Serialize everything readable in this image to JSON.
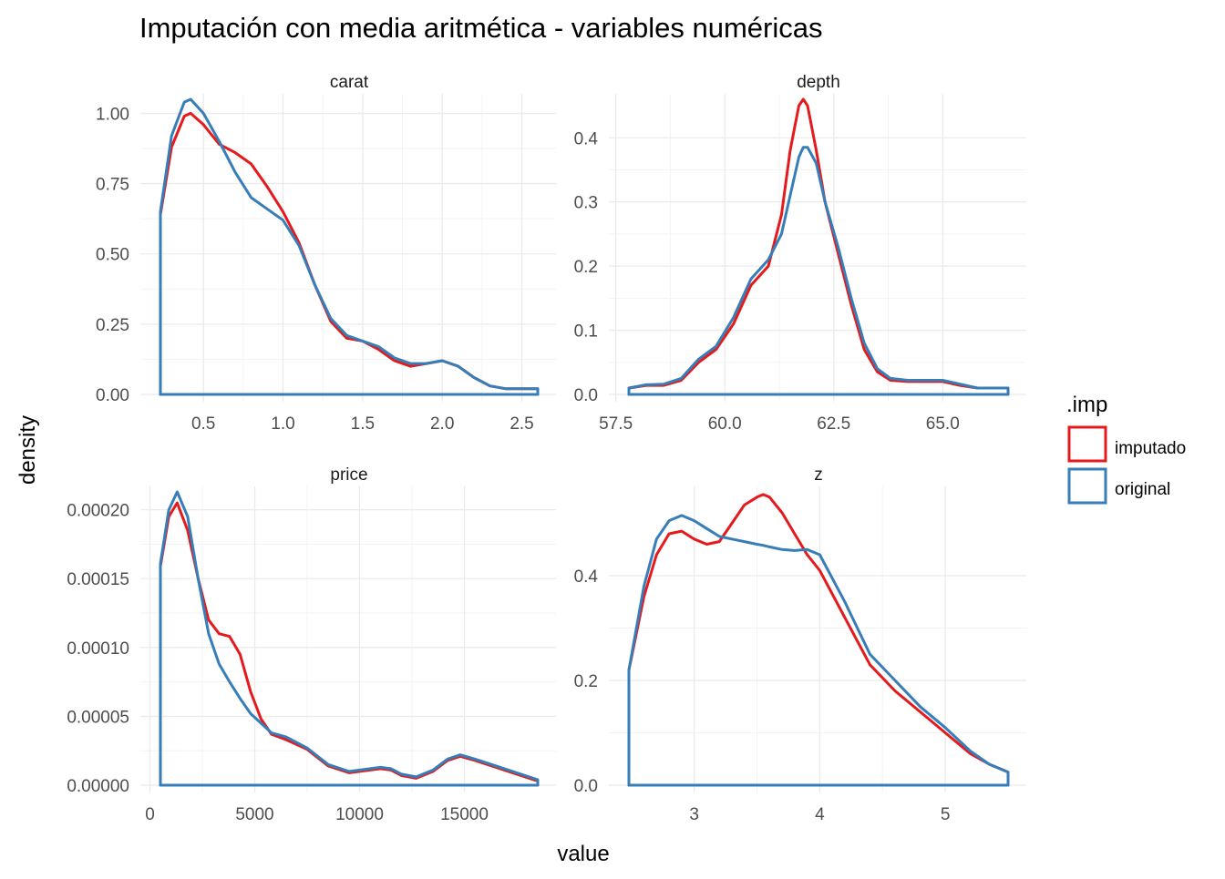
{
  "chart_data": {
    "type": "line",
    "title": "Imputación con media aritmética - variables numéricas",
    "xlabel": "value",
    "ylabel": "density",
    "legend": {
      "title": ".imp",
      "position": "right",
      "entries": [
        {
          "name": "imputado",
          "color": "#E41A1C"
        },
        {
          "name": "original",
          "color": "#377EB8"
        }
      ]
    },
    "grid": true,
    "panels": [
      {
        "name": "carat",
        "xlim": [
          0.23,
          2.6
        ],
        "ylim": [
          0,
          1.05
        ],
        "xticks": [
          {
            "v": 0.5,
            "l": "0.5"
          },
          {
            "v": 1.0,
            "l": "1.0"
          },
          {
            "v": 1.5,
            "l": "1.5"
          },
          {
            "v": 2.0,
            "l": "2.0"
          },
          {
            "v": 2.5,
            "l": "2.5"
          }
        ],
        "yticks": [
          {
            "v": 0,
            "l": "0.00"
          },
          {
            "v": 0.25,
            "l": "0.25"
          },
          {
            "v": 0.5,
            "l": "0.50"
          },
          {
            "v": 0.75,
            "l": "0.75"
          },
          {
            "v": 1.0,
            "l": "1.00"
          }
        ],
        "series": [
          {
            "name": "imputado",
            "x": [
              0.23,
              0.3,
              0.38,
              0.42,
              0.5,
              0.6,
              0.7,
              0.8,
              0.9,
              1.0,
              1.1,
              1.2,
              1.3,
              1.4,
              1.5,
              1.6,
              1.7,
              1.8,
              1.9,
              2.0,
              2.1,
              2.2,
              2.3,
              2.4,
              2.5,
              2.6
            ],
            "y": [
              0.64,
              0.88,
              0.99,
              1.0,
              0.96,
              0.89,
              0.86,
              0.82,
              0.74,
              0.65,
              0.54,
              0.39,
              0.26,
              0.2,
              0.19,
              0.16,
              0.12,
              0.1,
              0.11,
              0.12,
              0.1,
              0.06,
              0.03,
              0.02,
              0.02,
              0.02
            ]
          },
          {
            "name": "original",
            "x": [
              0.23,
              0.3,
              0.38,
              0.42,
              0.5,
              0.6,
              0.7,
              0.8,
              0.9,
              1.0,
              1.1,
              1.2,
              1.3,
              1.4,
              1.5,
              1.6,
              1.7,
              1.8,
              1.9,
              2.0,
              2.1,
              2.2,
              2.3,
              2.4,
              2.5,
              2.6
            ],
            "y": [
              0.65,
              0.92,
              1.04,
              1.05,
              1.0,
              0.9,
              0.79,
              0.7,
              0.66,
              0.62,
              0.53,
              0.39,
              0.27,
              0.21,
              0.19,
              0.17,
              0.13,
              0.11,
              0.11,
              0.12,
              0.1,
              0.06,
              0.03,
              0.02,
              0.02,
              0.02
            ]
          }
        ]
      },
      {
        "name": "depth",
        "xlim": [
          57.8,
          66.5
        ],
        "ylim": [
          0,
          0.46
        ],
        "xticks": [
          {
            "v": 57.5,
            "l": "57.5"
          },
          {
            "v": 60.0,
            "l": "60.0"
          },
          {
            "v": 62.5,
            "l": "62.5"
          },
          {
            "v": 65.0,
            "l": "65.0"
          }
        ],
        "yticks": [
          {
            "v": 0,
            "l": "0.0"
          },
          {
            "v": 0.1,
            "l": "0.1"
          },
          {
            "v": 0.2,
            "l": "0.2"
          },
          {
            "v": 0.3,
            "l": "0.3"
          },
          {
            "v": 0.4,
            "l": "0.4"
          }
        ],
        "series": [
          {
            "name": "imputado",
            "x": [
              57.8,
              58.2,
              58.6,
              59.0,
              59.4,
              59.8,
              60.2,
              60.6,
              61.0,
              61.3,
              61.5,
              61.7,
              61.8,
              61.9,
              62.1,
              62.3,
              62.6,
              62.9,
              63.2,
              63.5,
              63.8,
              64.2,
              64.6,
              65.0,
              65.4,
              65.8,
              66.2,
              66.5
            ],
            "y": [
              0.01,
              0.014,
              0.014,
              0.022,
              0.05,
              0.07,
              0.11,
              0.17,
              0.2,
              0.28,
              0.38,
              0.45,
              0.46,
              0.45,
              0.38,
              0.3,
              0.22,
              0.14,
              0.07,
              0.035,
              0.022,
              0.02,
              0.02,
              0.02,
              0.014,
              0.01,
              0.01,
              0.01
            ]
          },
          {
            "name": "original",
            "x": [
              57.8,
              58.2,
              58.6,
              59.0,
              59.4,
              59.8,
              60.2,
              60.6,
              61.0,
              61.3,
              61.5,
              61.7,
              61.8,
              61.9,
              62.1,
              62.3,
              62.6,
              62.9,
              63.2,
              63.5,
              63.8,
              64.2,
              64.6,
              65.0,
              65.4,
              65.8,
              66.2,
              66.5
            ],
            "y": [
              0.01,
              0.015,
              0.016,
              0.025,
              0.055,
              0.075,
              0.12,
              0.18,
              0.21,
              0.25,
              0.31,
              0.37,
              0.385,
              0.385,
              0.36,
              0.3,
              0.23,
              0.15,
              0.08,
              0.04,
              0.025,
              0.022,
              0.022,
              0.022,
              0.016,
              0.01,
              0.01,
              0.01
            ]
          }
        ]
      },
      {
        "name": "price",
        "xlim": [
          500,
          18500
        ],
        "ylim": [
          0,
          0.000213
        ],
        "xticks": [
          {
            "v": 0,
            "l": "0"
          },
          {
            "v": 5000,
            "l": "5000"
          },
          {
            "v": 10000,
            "l": "10000"
          },
          {
            "v": 15000,
            "l": "15000"
          }
        ],
        "yticks": [
          {
            "v": 0,
            "l": "0.00000"
          },
          {
            "v": 5e-05,
            "l": "0.00005"
          },
          {
            "v": 0.0001,
            "l": "0.00010"
          },
          {
            "v": 0.00015,
            "l": "0.00015"
          },
          {
            "v": 0.0002,
            "l": "0.00020"
          }
        ],
        "series": [
          {
            "name": "imputado",
            "x": [
              500,
              900,
              1300,
              1800,
              2300,
              2800,
              3300,
              3800,
              4300,
              4800,
              5300,
              5800,
              6500,
              7500,
              8500,
              9500,
              10500,
              11000,
              11500,
              12000,
              12700,
              13500,
              14200,
              14800,
              15500,
              16500,
              17500,
              18500
            ],
            "y": [
              0.000159,
              0.000195,
              0.000205,
              0.000185,
              0.00015,
              0.00012,
              0.00011,
              0.000108,
              9.5e-05,
              6.8e-05,
              4.8e-05,
              3.7e-05,
              3.3e-05,
              2.6e-05,
              1.4e-05,
              9e-06,
              1.1e-05,
              1.2e-05,
              1.1e-05,
              7e-06,
              5e-06,
              1e-05,
              1.8e-05,
              2.1e-05,
              1.8e-05,
              1.3e-05,
              8e-06,
              3e-06
            ]
          },
          {
            "name": "original",
            "x": [
              500,
              900,
              1300,
              1800,
              2300,
              2800,
              3300,
              3800,
              4300,
              4800,
              5300,
              5800,
              6500,
              7500,
              8500,
              9500,
              10500,
              11000,
              11500,
              12000,
              12700,
              13500,
              14200,
              14800,
              15500,
              16500,
              17500,
              18500
            ],
            "y": [
              0.000161,
              0.0002,
              0.000213,
              0.000195,
              0.00015,
              0.00011,
              8.8e-05,
              7.5e-05,
              6.3e-05,
              5.2e-05,
              4.5e-05,
              3.8e-05,
              3.5e-05,
              2.7e-05,
              1.5e-05,
              1e-05,
              1.2e-05,
              1.3e-05,
              1.2e-05,
              8e-06,
              6e-06,
              1.1e-05,
              1.9e-05,
              2.2e-05,
              1.9e-05,
              1.4e-05,
              9e-06,
              4e-06
            ]
          }
        ]
      },
      {
        "name": "z",
        "xlim": [
          2.48,
          5.5
        ],
        "ylim": [
          0,
          0.56
        ],
        "xticks": [
          {
            "v": 3,
            "l": "3"
          },
          {
            "v": 4,
            "l": "4"
          },
          {
            "v": 5,
            "l": "5"
          }
        ],
        "yticks": [
          {
            "v": 0,
            "l": "0.0"
          },
          {
            "v": 0.2,
            "l": "0.2"
          },
          {
            "v": 0.4,
            "l": "0.4"
          }
        ],
        "series": [
          {
            "name": "imputado",
            "x": [
              2.48,
              2.6,
              2.7,
              2.8,
              2.9,
              3.0,
              3.1,
              3.2,
              3.3,
              3.4,
              3.5,
              3.55,
              3.6,
              3.7,
              3.8,
              3.9,
              4.0,
              4.2,
              4.4,
              4.6,
              4.8,
              5.0,
              5.2,
              5.35,
              5.5
            ],
            "y": [
              0.22,
              0.36,
              0.44,
              0.48,
              0.485,
              0.47,
              0.46,
              0.465,
              0.5,
              0.535,
              0.55,
              0.555,
              0.55,
              0.52,
              0.48,
              0.44,
              0.41,
              0.32,
              0.23,
              0.18,
              0.14,
              0.1,
              0.06,
              0.04,
              0.025
            ]
          },
          {
            "name": "original",
            "x": [
              2.48,
              2.6,
              2.7,
              2.8,
              2.9,
              3.0,
              3.1,
              3.2,
              3.3,
              3.4,
              3.5,
              3.55,
              3.6,
              3.7,
              3.8,
              3.9,
              4.0,
              4.2,
              4.4,
              4.6,
              4.8,
              5.0,
              5.2,
              5.35,
              5.5
            ],
            "y": [
              0.22,
              0.38,
              0.47,
              0.505,
              0.515,
              0.505,
              0.49,
              0.475,
              0.47,
              0.465,
              0.46,
              0.458,
              0.455,
              0.45,
              0.448,
              0.45,
              0.44,
              0.35,
              0.25,
              0.2,
              0.15,
              0.11,
              0.065,
              0.04,
              0.025
            ]
          }
        ]
      }
    ]
  }
}
